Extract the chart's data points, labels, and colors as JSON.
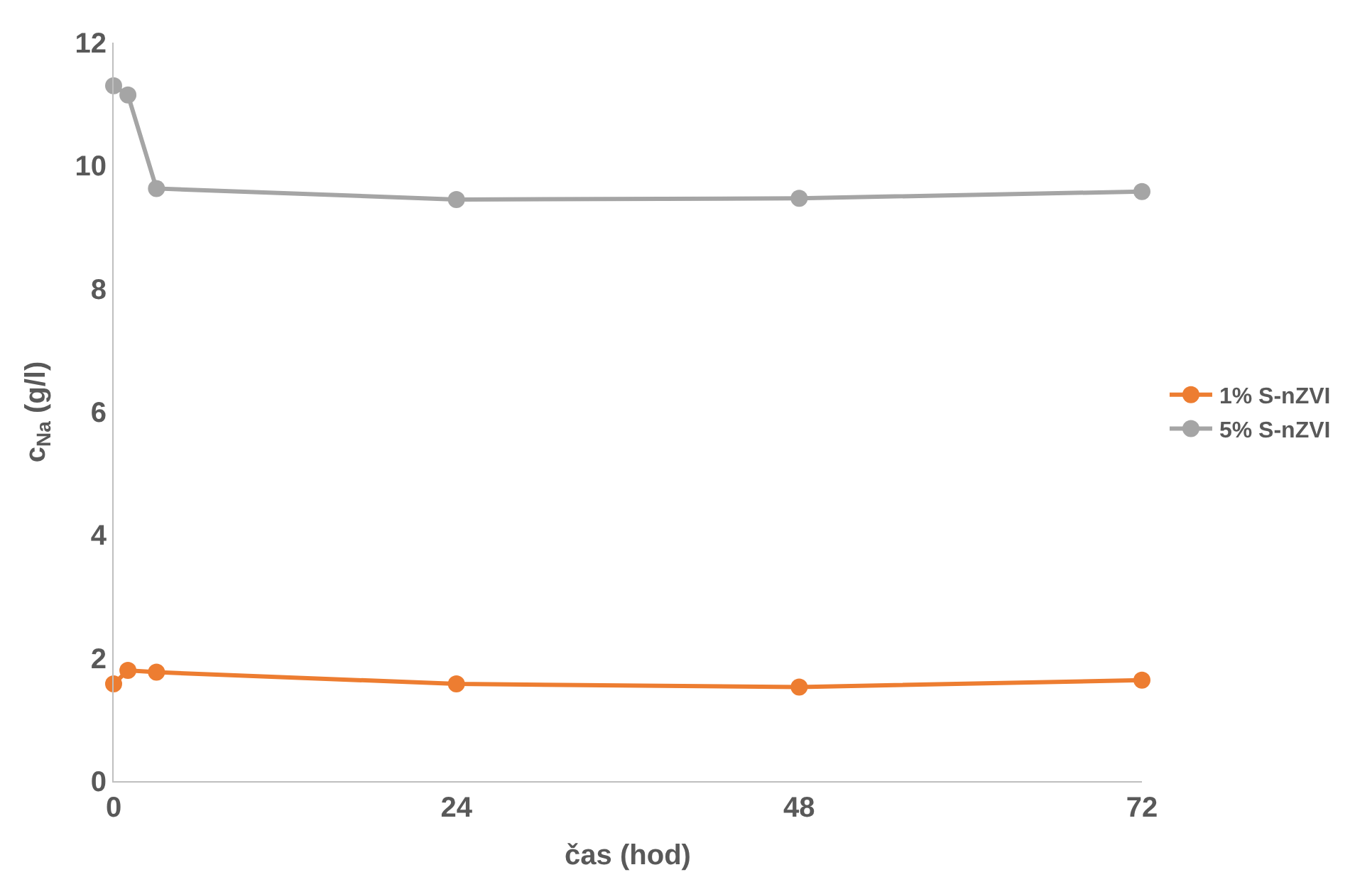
{
  "chart_data": {
    "type": "line",
    "xlabel": "čas (hod)",
    "ylabel": "c$_{Na}$ (g/l)",
    "x": [
      0,
      1,
      3,
      24,
      48,
      72
    ],
    "series": [
      {
        "name": "1% S-nZVI",
        "color": "#ed7d31",
        "values": [
          1.58,
          1.8,
          1.77,
          1.58,
          1.53,
          1.64
        ]
      },
      {
        "name": "5% S-nZVI",
        "color": "#a5a5a5",
        "values": [
          11.3,
          11.15,
          9.63,
          9.45,
          9.47,
          9.58
        ]
      }
    ],
    "xlim": [
      0,
      72
    ],
    "xticks": [
      0,
      24,
      48,
      72
    ],
    "ylim": [
      0,
      12
    ],
    "yticks": [
      0,
      2,
      4,
      6,
      8,
      10,
      12
    ],
    "legend": "right",
    "marker": "circle",
    "line_style": "solid"
  }
}
